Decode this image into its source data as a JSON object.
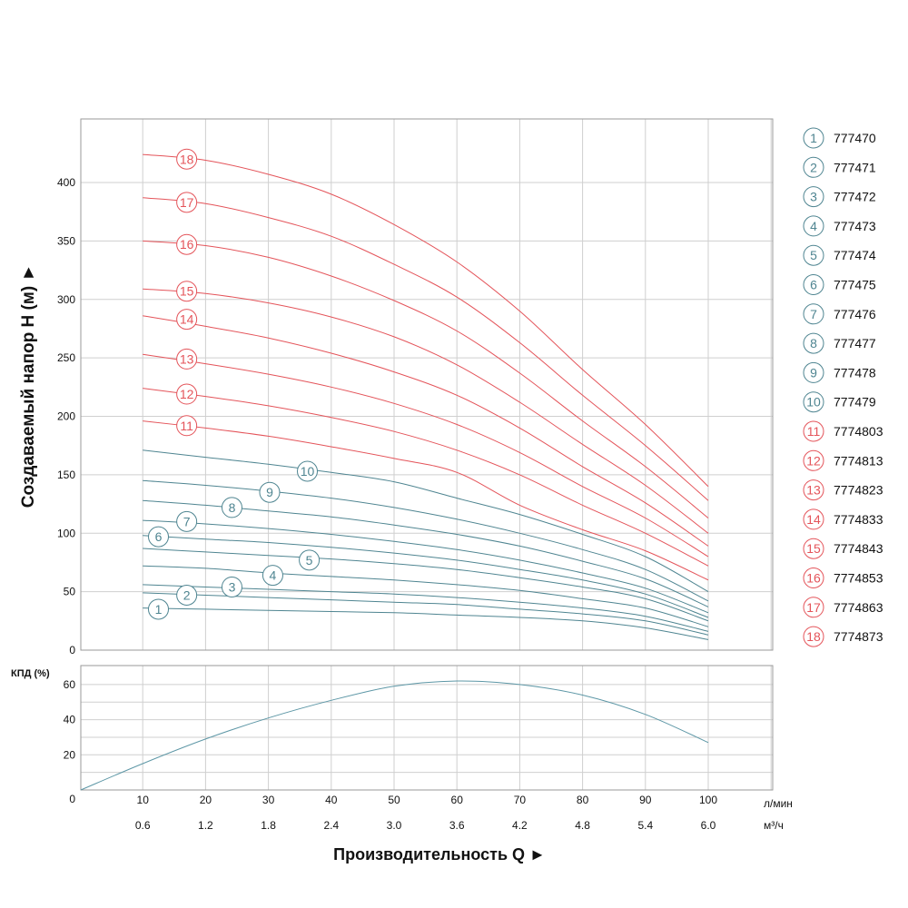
{
  "colors": {
    "teal": "#4f8591",
    "red": "#e4545a",
    "grid": "#cfcfcf",
    "frame": "#9a9a9a",
    "eff": "#5d97a6"
  },
  "chart_data": [
    {
      "type": "line",
      "ylabel": "Создаваемый напор H (м) ►",
      "ylim": [
        0,
        450
      ],
      "yticks": [
        0,
        50,
        100,
        150,
        200,
        250,
        300,
        350,
        400
      ],
      "x": [
        10,
        20,
        30,
        40,
        50,
        60,
        70,
        80,
        90,
        100
      ],
      "series": [
        {
          "name": "1",
          "model": "777470",
          "color": "teal",
          "values": [
            36,
            35,
            34,
            33,
            32,
            30,
            28,
            25,
            19,
            9
          ]
        },
        {
          "name": "2",
          "model": "777471",
          "color": "teal",
          "values": [
            49,
            47,
            45,
            43,
            41,
            39,
            35,
            31,
            25,
            13
          ]
        },
        {
          "name": "3",
          "model": "777472",
          "color": "teal",
          "values": [
            56,
            54,
            52,
            50,
            48,
            45,
            41,
            36,
            29,
            16
          ]
        },
        {
          "name": "4",
          "model": "777473",
          "color": "teal",
          "values": [
            72,
            70,
            66,
            63,
            60,
            56,
            51,
            44,
            36,
            20
          ]
        },
        {
          "name": "5",
          "model": "777474",
          "color": "teal",
          "values": [
            87,
            84,
            81,
            78,
            74,
            69,
            62,
            54,
            44,
            25
          ]
        },
        {
          "name": "6",
          "model": "777475",
          "color": "teal",
          "values": [
            98,
            95,
            92,
            88,
            83,
            77,
            69,
            60,
            48,
            28
          ]
        },
        {
          "name": "7",
          "model": "777476",
          "color": "teal",
          "values": [
            111,
            108,
            104,
            99,
            93,
            86,
            77,
            66,
            53,
            32
          ]
        },
        {
          "name": "8",
          "model": "777477",
          "color": "teal",
          "values": [
            128,
            124,
            119,
            114,
            107,
            99,
            89,
            76,
            61,
            37
          ]
        },
        {
          "name": "9",
          "model": "777478",
          "color": "teal",
          "values": [
            145,
            141,
            136,
            130,
            122,
            112,
            100,
            86,
            69,
            42
          ]
        },
        {
          "name": "10",
          "model": "777479",
          "color": "teal",
          "values": [
            171,
            165,
            159,
            152,
            144,
            130,
            116,
            99,
            80,
            50
          ]
        },
        {
          "name": "11",
          "model": "7774803",
          "color": "red",
          "values": [
            196,
            190,
            183,
            174,
            164,
            152,
            124,
            103,
            85,
            60
          ]
        },
        {
          "name": "12",
          "model": "7774813",
          "color": "red",
          "values": [
            224,
            217,
            209,
            199,
            187,
            171,
            150,
            124,
            100,
            72
          ]
        },
        {
          "name": "13",
          "model": "7774823",
          "color": "red",
          "values": [
            253,
            245,
            236,
            225,
            211,
            193,
            169,
            140,
            113,
            80
          ]
        },
        {
          "name": "14",
          "model": "7774833",
          "color": "red",
          "values": [
            286,
            277,
            267,
            254,
            238,
            218,
            190,
            157,
            126,
            89
          ]
        },
        {
          "name": "15",
          "model": "7774843",
          "color": "red",
          "values": [
            309,
            305,
            297,
            285,
            268,
            244,
            212,
            176,
            141,
            100
          ]
        },
        {
          "name": "16",
          "model": "7774853",
          "color": "red",
          "values": [
            350,
            346,
            336,
            320,
            299,
            273,
            237,
            196,
            157,
            113
          ]
        },
        {
          "name": "17",
          "model": "7774863",
          "color": "red",
          "values": [
            387,
            382,
            370,
            354,
            330,
            302,
            263,
            218,
            175,
            128
          ]
        },
        {
          "name": "18",
          "model": "7774873",
          "color": "red",
          "values": [
            424,
            419,
            407,
            390,
            364,
            332,
            290,
            240,
            193,
            140
          ]
        }
      ],
      "curve_labels": [
        {
          "name": "1",
          "x": 12.5,
          "y": 35
        },
        {
          "name": "2",
          "x": 17,
          "y": 47
        },
        {
          "name": "3",
          "x": 24.2,
          "y": 54
        },
        {
          "name": "4",
          "x": 30.7,
          "y": 64
        },
        {
          "name": "5",
          "x": 36.5,
          "y": 77
        },
        {
          "name": "6",
          "x": 12.5,
          "y": 97
        },
        {
          "name": "7",
          "x": 17,
          "y": 110
        },
        {
          "name": "8",
          "x": 24.2,
          "y": 122
        },
        {
          "name": "9",
          "x": 30.2,
          "y": 135
        },
        {
          "name": "10",
          "x": 36.2,
          "y": 153
        },
        {
          "name": "11",
          "x": 17,
          "y": 192
        },
        {
          "name": "12",
          "x": 17,
          "y": 219
        },
        {
          "name": "13",
          "x": 17,
          "y": 249
        },
        {
          "name": "14",
          "x": 17,
          "y": 283
        },
        {
          "name": "15",
          "x": 17,
          "y": 307
        },
        {
          "name": "16",
          "x": 17,
          "y": 347
        },
        {
          "name": "17",
          "x": 17,
          "y": 383
        },
        {
          "name": "18",
          "x": 17,
          "y": 420
        }
      ]
    },
    {
      "type": "line",
      "ylabel": "КПД (%)",
      "ylim": [
        0,
        70
      ],
      "yticks": [
        0,
        20,
        40,
        60
      ],
      "series": [
        {
          "name": "КПД",
          "color": "eff",
          "x": [
            0,
            10,
            20,
            30,
            40,
            50,
            60,
            70,
            80,
            90,
            100
          ],
          "values": [
            0,
            15,
            29,
            41,
            51,
            59,
            62,
            60,
            54,
            43,
            27
          ]
        }
      ]
    }
  ],
  "x_axis": {
    "lmin_ticks": [
      "10",
      "20",
      "30",
      "40",
      "50",
      "60",
      "70",
      "80",
      "90",
      "100"
    ],
    "lmin_unit": "л/мин",
    "m3h_ticks": [
      "0.6",
      "1.2",
      "1.8",
      "2.4",
      "3.0",
      "3.6",
      "4.2",
      "4.8",
      "5.4",
      "6.0"
    ],
    "m3h_unit": "м³/ч",
    "title": "Производительность Q ►"
  },
  "legend": [
    {
      "num": "1",
      "model": "777470",
      "color": "teal"
    },
    {
      "num": "2",
      "model": "777471",
      "color": "teal"
    },
    {
      "num": "3",
      "model": "777472",
      "color": "teal"
    },
    {
      "num": "4",
      "model": "777473",
      "color": "teal"
    },
    {
      "num": "5",
      "model": "777474",
      "color": "teal"
    },
    {
      "num": "6",
      "model": "777475",
      "color": "teal"
    },
    {
      "num": "7",
      "model": "777476",
      "color": "teal"
    },
    {
      "num": "8",
      "model": "777477",
      "color": "teal"
    },
    {
      "num": "9",
      "model": "777478",
      "color": "teal"
    },
    {
      "num": "10",
      "model": "777479",
      "color": "teal"
    },
    {
      "num": "11",
      "model": "7774803",
      "color": "red"
    },
    {
      "num": "12",
      "model": "7774813",
      "color": "red"
    },
    {
      "num": "13",
      "model": "7774823",
      "color": "red"
    },
    {
      "num": "14",
      "model": "7774833",
      "color": "red"
    },
    {
      "num": "15",
      "model": "7774843",
      "color": "red"
    },
    {
      "num": "16",
      "model": "7774853",
      "color": "red"
    },
    {
      "num": "17",
      "model": "7774863",
      "color": "red"
    },
    {
      "num": "18",
      "model": "7774873",
      "color": "red"
    }
  ]
}
